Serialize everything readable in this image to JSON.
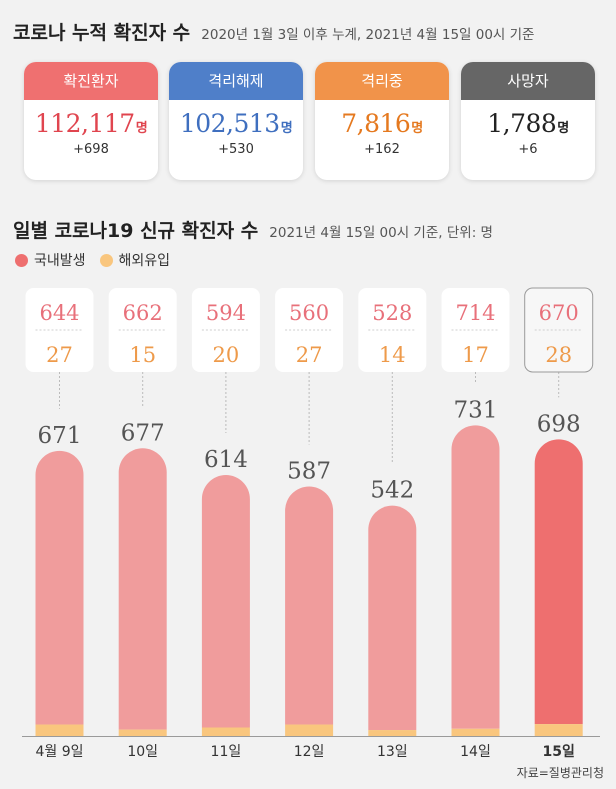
{
  "header": {
    "title": "코로나 누적 확진자 수",
    "subtitle": "2020년 1월 3일 이후 누계, 2021년 4월 15일 00시 기준"
  },
  "cards": [
    {
      "label": "확진환자",
      "value": "112,117",
      "unit": "명",
      "delta": "+698",
      "head_color": "#ef7070",
      "value_color": "#e0454f"
    },
    {
      "label": "격리해제",
      "value": "102,513",
      "unit": "명",
      "delta": "+530",
      "head_color": "#4f7fc9",
      "value_color": "#3f6fbf"
    },
    {
      "label": "격리중",
      "value": "7,816",
      "unit": "명",
      "delta": "+162",
      "head_color": "#f1934a",
      "value_color": "#e5791f"
    },
    {
      "label": "사망자",
      "value": "1,788",
      "unit": "명",
      "delta": "+6",
      "head_color": "#666666",
      "value_color": "#222222"
    }
  ],
  "section2": {
    "title": "일별 코로나19 신규 확진자 수",
    "subtitle": "2021년 4월 15일 00시 기준, 단위: 명"
  },
  "legend": [
    {
      "label": "국내발생",
      "color": "#ee6f6f"
    },
    {
      "label": "해외유입",
      "color": "#f9c67e"
    }
  ],
  "chart_data": {
    "type": "bar",
    "stacked": true,
    "categories": [
      "4월 9일",
      "10일",
      "11일",
      "12일",
      "13일",
      "14일",
      "15일"
    ],
    "series": [
      {
        "name": "국내발생",
        "values": [
          644,
          662,
          594,
          560,
          528,
          714,
          670
        ],
        "color": "#f09c9c"
      },
      {
        "name": "해외유입",
        "values": [
          27,
          15,
          20,
          27,
          14,
          17,
          28
        ],
        "color": "#f9c67e"
      }
    ],
    "totals": [
      671,
      677,
      614,
      587,
      542,
      731,
      698
    ],
    "highlight_index": 6,
    "highlight_color": "#ee6f6f",
    "domestic_label_color": "#e8707a",
    "imported_label_color": "#ee9a4a"
  },
  "source": "자료=질병관리청"
}
